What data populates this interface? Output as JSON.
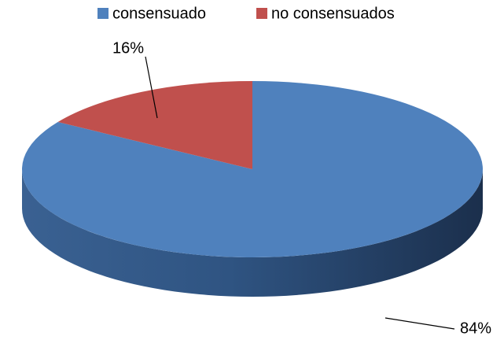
{
  "chart_data": {
    "type": "pie",
    "categories": [
      "consensuado",
      "no consensuados"
    ],
    "values": [
      84,
      16
    ],
    "value_labels": [
      "84%",
      "16%"
    ],
    "colors": [
      "#4f81bd",
      "#c0504d"
    ],
    "legend": "top"
  }
}
